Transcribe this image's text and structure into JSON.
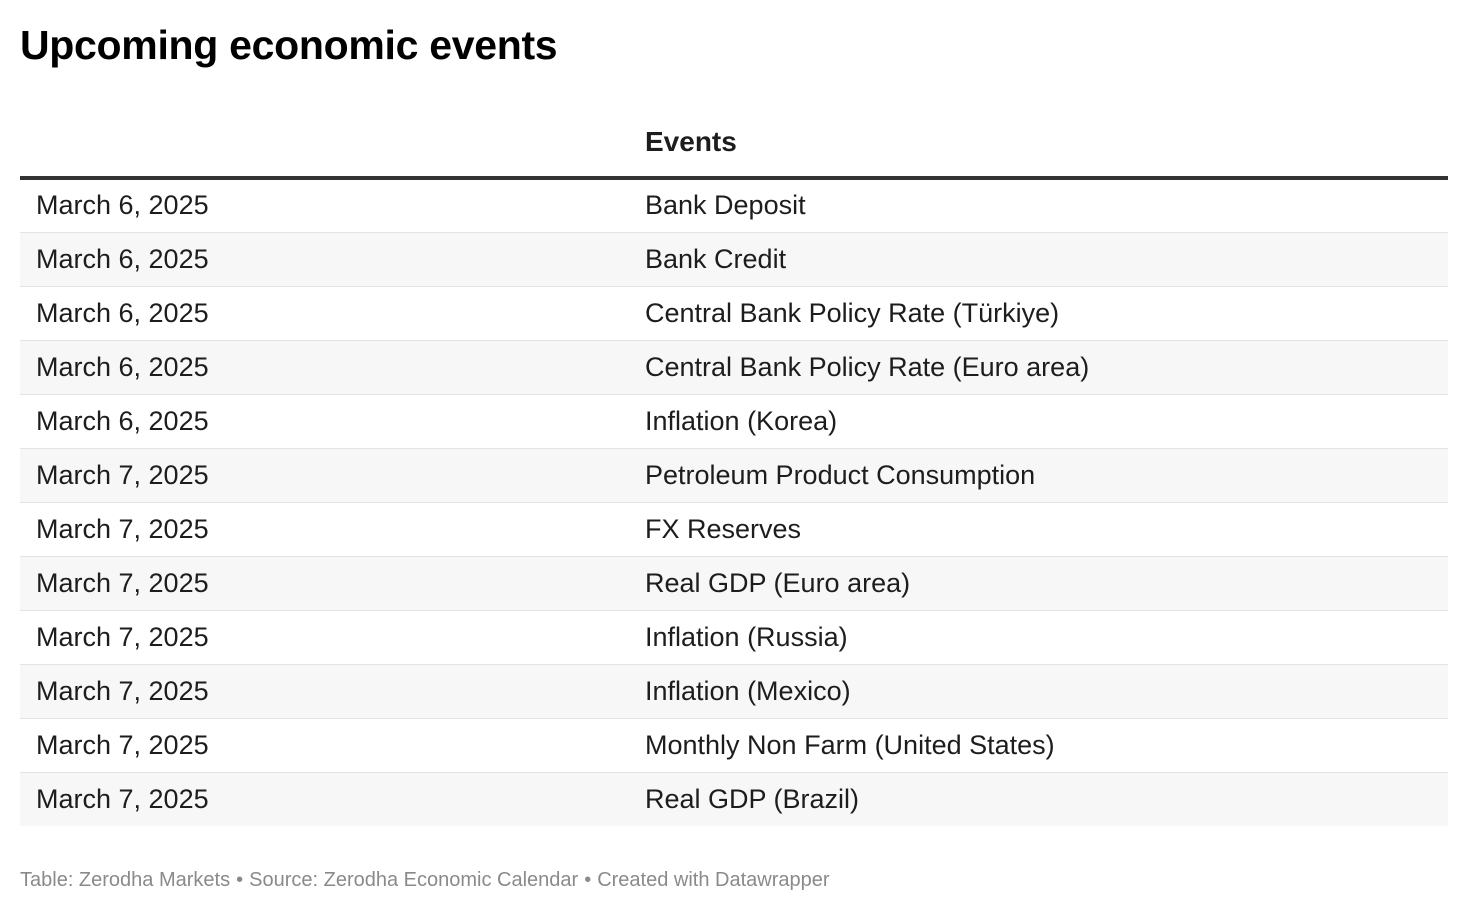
{
  "title": "Upcoming economic events",
  "chart_data": {
    "type": "table",
    "title": "Upcoming economic events",
    "columns": [
      "",
      "Events"
    ],
    "rows": [
      [
        "March 6, 2025",
        "Bank Deposit"
      ],
      [
        "March 6, 2025",
        "Bank Credit"
      ],
      [
        "March 6, 2025",
        "Central Bank Policy Rate (Türkiye)"
      ],
      [
        "March 6, 2025",
        "Central Bank Policy Rate (Euro area)"
      ],
      [
        "March 6, 2025",
        "Inflation (Korea)"
      ],
      [
        "March 7, 2025",
        "Petroleum Product Consumption"
      ],
      [
        "March 7, 2025",
        "FX Reserves"
      ],
      [
        "March 7, 2025",
        "Real GDP (Euro area)"
      ],
      [
        "March 7, 2025",
        "Inflation (Russia)"
      ],
      [
        "March 7, 2025",
        "Inflation (Mexico)"
      ],
      [
        "March 7, 2025",
        "Monthly Non Farm (United States)"
      ],
      [
        "March 7, 2025",
        "Real GDP (Brazil)"
      ]
    ]
  },
  "footer": {
    "table_credit": "Table: Zerodha Markets",
    "source": "Source: Zerodha Economic Calendar",
    "created_with": "Created with Datawrapper",
    "separator": "•"
  }
}
